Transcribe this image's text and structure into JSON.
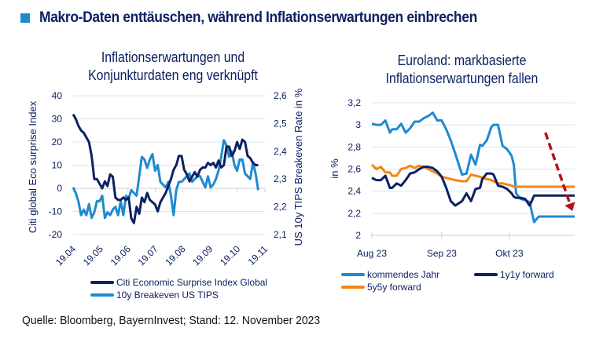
{
  "header": {
    "title": "Makro-Daten enttäuschen, während Inflationserwartungen einbrechen",
    "accent_color": "#1e8ad0"
  },
  "footer": {
    "source": "Quelle: Bloomberg, BayernInvest; Stand: 12. November 2023"
  },
  "chart_data": [
    {
      "type": "line",
      "title": "Inflationserwartungen und Konjunkturdaten eng verknüpft",
      "title_lines": [
        "Inflationserwartungen und",
        "Konjunkturdaten eng verknüpft"
      ],
      "ylabel": "Citi global Eco surprise Index",
      "y2label": "US 10y TIPS Breakeven Rate in %",
      "ylim": [
        -20,
        40
      ],
      "y2lim": [
        2.1,
        2.6
      ],
      "yticks": [
        "40",
        "30",
        "20",
        "10",
        "0",
        "-10",
        "-20"
      ],
      "y2ticks": [
        "2,6",
        "2,5",
        "2,4",
        "2,3",
        "2,2",
        "2,1"
      ],
      "xticks": [
        "19.04",
        "19.05",
        "19.06",
        "19.07",
        "19.08",
        "19.09",
        "19.10",
        "19.11"
      ],
      "grid": true,
      "legend_position": "bottom",
      "series": [
        {
          "name": "Citi Economic Surprise Index Global",
          "axis": "left",
          "color": "#0d2163",
          "x": [
            0,
            0.1,
            0.2,
            0.3,
            0.4,
            0.5,
            0.6,
            0.7,
            0.8,
            0.9,
            1.0,
            1.1,
            1.2,
            1.3,
            1.4,
            1.5,
            1.6,
            1.7,
            1.8,
            1.9,
            2.0,
            2.1,
            2.2,
            2.3,
            2.4,
            2.5,
            2.6,
            2.7,
            2.8,
            2.9,
            3.0,
            3.1,
            3.2,
            3.3,
            3.4,
            3.5,
            3.6,
            3.7,
            3.8,
            3.9,
            4.0,
            4.1,
            4.2,
            4.3,
            4.4,
            4.5,
            4.6,
            4.7,
            4.8,
            4.9,
            5.0,
            5.1,
            5.2,
            5.3,
            5.4,
            5.5,
            5.6,
            5.7,
            5.8,
            5.9,
            6.0,
            6.1,
            6.2,
            6.3,
            6.4,
            6.5,
            6.6,
            6.7,
            6.8,
            6.9,
            7.0
          ],
          "y": [
            32,
            30,
            27,
            25,
            24,
            22,
            20,
            14,
            4,
            4,
            2,
            0,
            3,
            1,
            6,
            5,
            -4,
            -5,
            -5,
            -4,
            -5,
            -4,
            -13,
            -15,
            -8,
            -11,
            -4,
            -6,
            -2,
            -5,
            -6,
            -7,
            -10,
            -6,
            -4,
            -2,
            1,
            4,
            8,
            10,
            14,
            14,
            8,
            6,
            3,
            5,
            7,
            5,
            8,
            9,
            9,
            11,
            10,
            11,
            9,
            12,
            9,
            10,
            18,
            18,
            14,
            16,
            20,
            17,
            21,
            20,
            14,
            13,
            11,
            10,
            10
          ]
        },
        {
          "name": "10y Breakeven US TIPS",
          "axis": "right",
          "color": "#1e8ad0",
          "x": [
            0,
            0.1,
            0.2,
            0.3,
            0.4,
            0.5,
            0.6,
            0.7,
            0.8,
            0.9,
            1.0,
            1.1,
            1.2,
            1.3,
            1.4,
            1.5,
            1.6,
            1.7,
            1.8,
            1.9,
            2.0,
            2.1,
            2.2,
            2.3,
            2.4,
            2.5,
            2.6,
            2.7,
            2.8,
            2.9,
            3.0,
            3.1,
            3.2,
            3.3,
            3.4,
            3.5,
            3.6,
            3.7,
            3.8,
            3.9,
            4.0,
            4.1,
            4.2,
            4.3,
            4.4,
            4.5,
            4.6,
            4.7,
            4.8,
            4.9,
            5.0,
            5.1,
            5.2,
            5.3,
            5.4,
            5.5,
            5.6,
            5.7,
            5.8,
            5.9,
            6.0,
            6.1,
            6.2,
            6.3,
            6.4,
            6.5,
            6.6,
            6.7,
            6.8,
            6.9,
            7.0
          ],
          "y": [
            2.27,
            2.25,
            2.22,
            2.17,
            2.19,
            2.17,
            2.21,
            2.16,
            2.18,
            2.22,
            2.22,
            2.24,
            2.16,
            2.18,
            2.17,
            2.19,
            2.2,
            2.17,
            2.22,
            2.17,
            2.24,
            2.23,
            2.26,
            2.25,
            2.24,
            2.31,
            2.38,
            2.37,
            2.34,
            2.37,
            2.39,
            2.33,
            2.35,
            2.29,
            2.28,
            2.27,
            2.29,
            2.24,
            2.17,
            2.26,
            2.29,
            2.29,
            2.3,
            2.31,
            2.32,
            2.29,
            2.3,
            2.31,
            2.31,
            2.29,
            2.27,
            2.31,
            2.27,
            2.28,
            2.3,
            2.33,
            2.38,
            2.44,
            2.42,
            2.38,
            2.4,
            2.35,
            2.33,
            2.37,
            2.37,
            2.32,
            2.31,
            2.3,
            2.36,
            2.32,
            2.26
          ]
        }
      ]
    },
    {
      "type": "line",
      "title": "Euroland: markbasierte Inflationserwartungen fallen",
      "title_lines": [
        "Euroland: markbasierte",
        "Inflationserwartungen fallen"
      ],
      "ylabel": "in %",
      "ylim": [
        2,
        3.2
      ],
      "yticks": [
        "3,2",
        "3",
        "2,8",
        "2,6",
        "2,4",
        "2,2",
        "2"
      ],
      "xticks": [
        "Aug 23",
        "Sep 23",
        "Okt 23"
      ],
      "xtick_positions": [
        0,
        31,
        61
      ],
      "xmax": 90,
      "grid": true,
      "legend_position": "bottom",
      "annotation": {
        "type": "arrow",
        "style": "dashed",
        "color": "#b5121b",
        "from": [
          77,
          2.93
        ],
        "to": [
          89,
          2.22
        ]
      },
      "series": [
        {
          "name": "kommendes Jahr",
          "color": "#1e8ad0",
          "x": [
            0,
            2,
            4,
            6,
            8,
            9,
            11,
            13,
            15,
            17,
            19,
            21,
            23,
            25,
            27,
            29,
            31,
            33,
            35,
            37,
            40,
            42,
            44,
            46,
            48,
            49,
            51,
            53,
            54,
            56,
            58,
            60,
            62,
            63,
            64,
            66,
            68,
            70,
            72,
            74,
            76,
            78,
            79,
            80,
            82,
            84,
            86,
            88,
            90
          ],
          "y": [
            3.01,
            3.0,
            3.0,
            3.04,
            2.93,
            2.96,
            2.96,
            3.01,
            2.93,
            2.97,
            3.03,
            3.03,
            3.06,
            3.08,
            3.11,
            3.04,
            3.04,
            2.96,
            2.86,
            2.74,
            2.55,
            2.56,
            2.73,
            2.64,
            2.82,
            2.81,
            2.86,
            2.98,
            3.0,
            3.0,
            2.81,
            2.78,
            2.72,
            2.64,
            2.38,
            2.33,
            2.32,
            2.3,
            2.12,
            2.17,
            2.17,
            2.17,
            2.17,
            2.17,
            2.17,
            2.17,
            2.17,
            2.17,
            2.17
          ]
        },
        {
          "name": "1y1y forward",
          "color": "#0d2163",
          "x": [
            0,
            2,
            4,
            6,
            8,
            9,
            11,
            13,
            15,
            17,
            19,
            21,
            23,
            25,
            27,
            29,
            31,
            33,
            35,
            37,
            40,
            42,
            44,
            46,
            48,
            49,
            51,
            53,
            54,
            56,
            58,
            60,
            62,
            63,
            64,
            66,
            68,
            70,
            72,
            74,
            76,
            78,
            79,
            80,
            82,
            84,
            86,
            88,
            90
          ],
          "y": [
            2.52,
            2.5,
            2.5,
            2.54,
            2.43,
            2.43,
            2.47,
            2.45,
            2.5,
            2.56,
            2.57,
            2.6,
            2.62,
            2.62,
            2.61,
            2.58,
            2.53,
            2.43,
            2.31,
            2.27,
            2.31,
            2.38,
            2.31,
            2.42,
            2.43,
            2.51,
            2.56,
            2.56,
            2.55,
            2.45,
            2.44,
            2.42,
            2.38,
            2.35,
            2.34,
            2.34,
            2.33,
            2.27,
            2.36,
            2.36,
            2.36,
            2.36,
            2.36,
            2.36,
            2.36,
            2.36,
            2.36,
            2.36,
            2.36
          ]
        },
        {
          "name": "5y5y forward",
          "color": "#f58512",
          "x": [
            0,
            2,
            4,
            6,
            8,
            9,
            11,
            13,
            15,
            17,
            19,
            21,
            23,
            25,
            27,
            29,
            31,
            33,
            35,
            37,
            40,
            42,
            44,
            46,
            48,
            49,
            51,
            53,
            54,
            56,
            58,
            60,
            62,
            63,
            64,
            66,
            68,
            70,
            72,
            74,
            76,
            78,
            79,
            80,
            82,
            84,
            86,
            88,
            90
          ],
          "y": [
            2.64,
            2.6,
            2.62,
            2.57,
            2.57,
            2.54,
            2.54,
            2.6,
            2.61,
            2.63,
            2.61,
            2.63,
            2.62,
            2.6,
            2.58,
            2.56,
            2.53,
            2.52,
            2.51,
            2.5,
            2.49,
            2.49,
            2.55,
            2.54,
            2.53,
            2.52,
            2.51,
            2.5,
            2.49,
            2.47,
            2.47,
            2.46,
            2.45,
            2.44,
            2.44,
            2.44,
            2.44,
            2.44,
            2.44,
            2.44,
            2.44,
            2.44,
            2.44,
            2.44,
            2.44,
            2.44,
            2.44,
            2.44,
            2.44
          ]
        }
      ]
    }
  ]
}
